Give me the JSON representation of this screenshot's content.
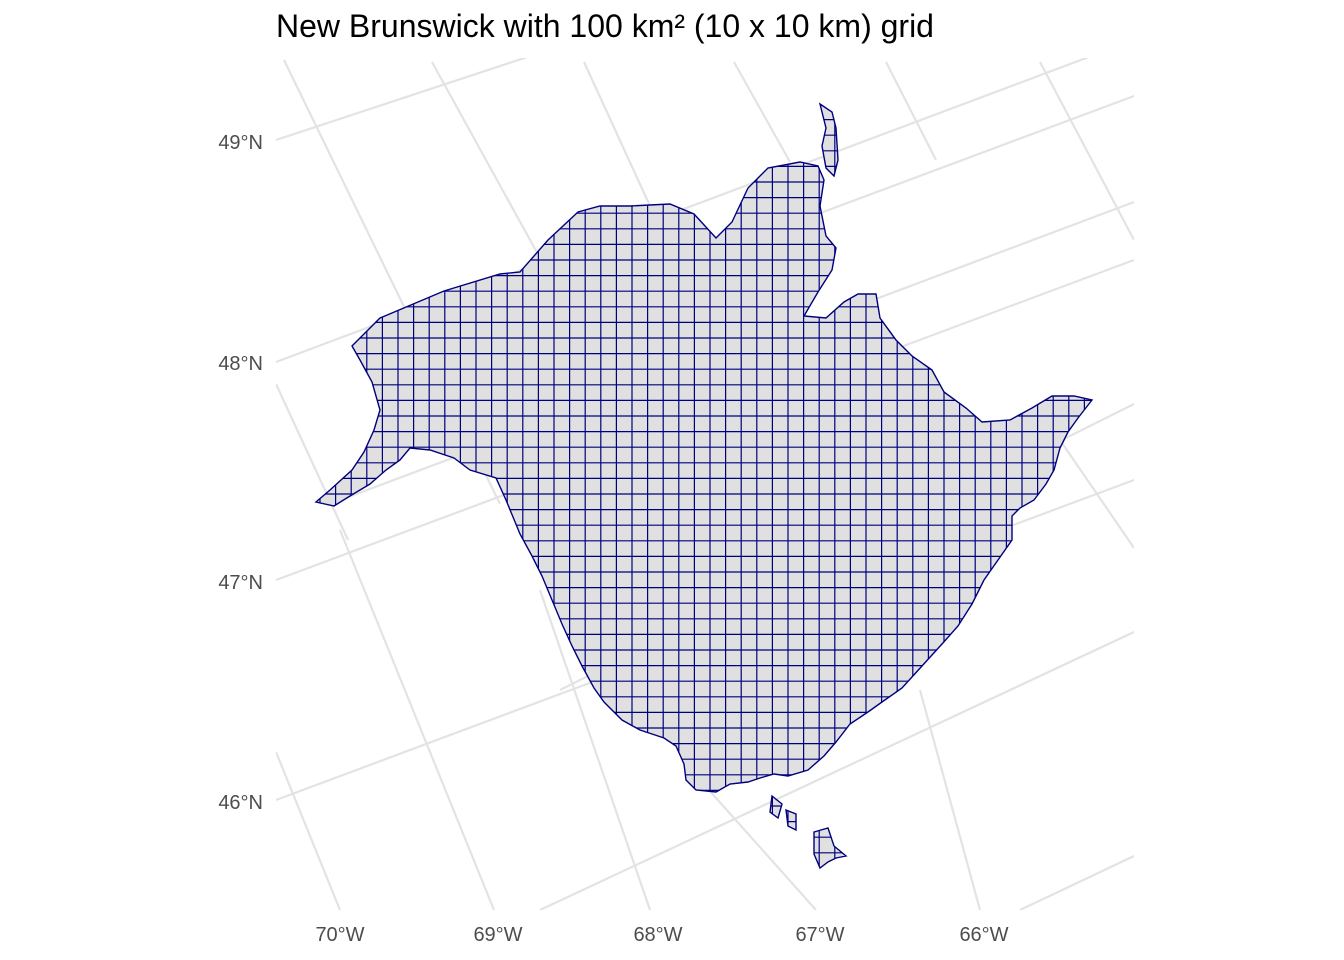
{
  "title": "New Brunswick with 100 km² (10 x 10 km) grid",
  "axes": {
    "latitude_labels": [
      "49°N",
      "48°N",
      "47°N",
      "46°N"
    ],
    "longitude_labels": [
      "70°W",
      "69°W",
      "68°W",
      "67°W",
      "66°W"
    ]
  },
  "colors": {
    "land_fill": "#e0e0e0",
    "grid_line": "#00007f",
    "graticule": "#e3e3e3",
    "tick_text": "#4d4d4d"
  }
}
